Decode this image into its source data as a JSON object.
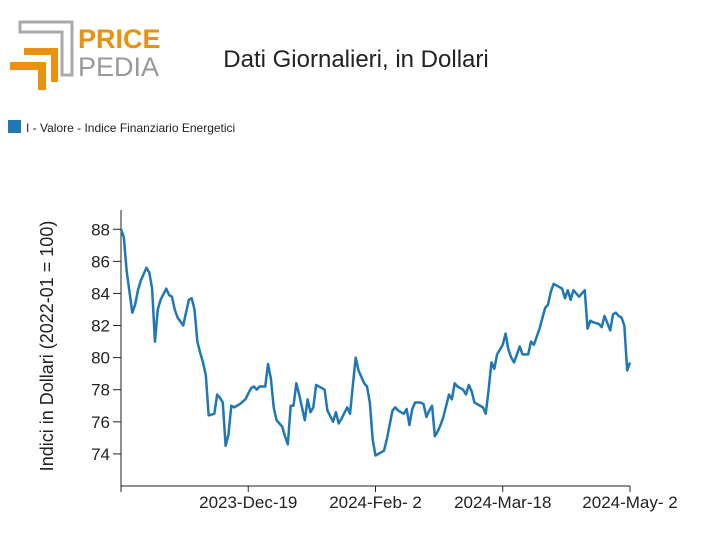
{
  "logo": {
    "top": "PRICE",
    "bottom": "PEDIA"
  },
  "chart_data": {
    "type": "line",
    "title": "Dati Giornalieri, in Dollari",
    "y_label": "Indici in Dollari (2022-01 = 100)",
    "legend_position": "top-left",
    "x": [
      "2023-11-04",
      "2023-11-05",
      "2023-11-06",
      "2023-11-08",
      "2023-11-09",
      "2023-11-10",
      "2023-11-11",
      "2023-11-13",
      "2023-11-14",
      "2023-11-15",
      "2023-11-16",
      "2023-11-17",
      "2023-11-18",
      "2023-11-20",
      "2023-11-21",
      "2023-11-22",
      "2023-11-23",
      "2023-11-24",
      "2023-11-26",
      "2023-11-28",
      "2023-11-29",
      "2023-11-30",
      "2023-12-01",
      "2023-12-02",
      "2023-12-03",
      "2023-12-04",
      "2023-12-05",
      "2023-12-07",
      "2023-12-08",
      "2023-12-09",
      "2023-12-10",
      "2023-12-11",
      "2023-12-12",
      "2023-12-13",
      "2023-12-14",
      "2023-12-16",
      "2023-12-18",
      "2023-12-20",
      "2023-12-21",
      "2023-12-22",
      "2023-12-23",
      "2023-12-25",
      "2023-12-26",
      "2023-12-27",
      "2023-12-28",
      "2023-12-29",
      "2023-12-31",
      "2024-01-01",
      "2024-01-02",
      "2024-01-03",
      "2024-01-04",
      "2024-01-05",
      "2024-01-06",
      "2024-01-08",
      "2024-01-09",
      "2024-01-10",
      "2024-01-11",
      "2024-01-12",
      "2024-01-13",
      "2024-01-15",
      "2024-01-16",
      "2024-01-18",
      "2024-01-19",
      "2024-01-20",
      "2024-01-21",
      "2024-01-23",
      "2024-01-24",
      "2024-01-25",
      "2024-01-26",
      "2024-01-27",
      "2024-01-29",
      "2024-01-30",
      "2024-01-31",
      "2024-02-01",
      "2024-02-02",
      "2024-02-04",
      "2024-02-05",
      "2024-02-06",
      "2024-02-08",
      "2024-02-09",
      "2024-02-10",
      "2024-02-12",
      "2024-02-13",
      "2024-02-14",
      "2024-02-15",
      "2024-02-16",
      "2024-02-18",
      "2024-02-19",
      "2024-02-20",
      "2024-02-21",
      "2024-02-22",
      "2024-02-23",
      "2024-02-24",
      "2024-02-25",
      "2024-02-26",
      "2024-02-28",
      "2024-02-29",
      "2024-03-01",
      "2024-03-02",
      "2024-03-04",
      "2024-03-05",
      "2024-03-06",
      "2024-03-07",
      "2024-03-08",
      "2024-03-10",
      "2024-03-11",
      "2024-03-12",
      "2024-03-13",
      "2024-03-14",
      "2024-03-15",
      "2024-03-16",
      "2024-03-18",
      "2024-03-19",
      "2024-03-20",
      "2024-03-21",
      "2024-03-22",
      "2024-03-23",
      "2024-03-24",
      "2024-03-25",
      "2024-03-27",
      "2024-03-28",
      "2024-03-29",
      "2024-03-30",
      "2024-03-31",
      "2024-04-02",
      "2024-04-03",
      "2024-04-04",
      "2024-04-05",
      "2024-04-06",
      "2024-04-08",
      "2024-04-09",
      "2024-04-10",
      "2024-04-11",
      "2024-04-12",
      "2024-04-13",
      "2024-04-14",
      "2024-04-16",
      "2024-04-17",
      "2024-04-18",
      "2024-04-19",
      "2024-04-21",
      "2024-04-22",
      "2024-04-23",
      "2024-04-25",
      "2024-04-26",
      "2024-04-27",
      "2024-04-28",
      "2024-04-29",
      "2024-04-30",
      "2024-05-01",
      "2024-05-02"
    ],
    "series": [
      {
        "name": "I - Valore - Indice Finanziario Energetici",
        "color": "#1f77b4",
        "values": [
          88.0,
          87.5,
          85.4,
          82.8,
          83.3,
          84.2,
          84.8,
          85.6,
          85.3,
          84.3,
          81.0,
          83.0,
          83.6,
          84.3,
          83.9,
          83.8,
          83.0,
          82.5,
          82.0,
          83.6,
          83.7,
          83.0,
          81.0,
          80.3,
          79.7,
          78.9,
          76.4,
          76.5,
          77.7,
          77.5,
          77.2,
          74.5,
          75.2,
          77.0,
          76.9,
          77.1,
          77.4,
          78.1,
          78.2,
          78.0,
          78.2,
          78.2,
          79.6,
          78.7,
          76.9,
          76.1,
          75.7,
          75.1,
          74.6,
          77.0,
          77.0,
          78.4,
          77.7,
          76.1,
          77.4,
          76.6,
          76.9,
          78.3,
          78.2,
          78.0,
          76.7,
          76.0,
          76.6,
          75.9,
          76.2,
          76.9,
          76.5,
          78.3,
          80.0,
          79.2,
          78.4,
          78.2,
          77.2,
          74.9,
          73.9,
          74.1,
          74.2,
          74.9,
          76.7,
          76.9,
          76.7,
          76.5,
          76.8,
          75.8,
          76.8,
          77.2,
          77.2,
          77.1,
          76.3,
          76.7,
          77.0,
          75.1,
          75.4,
          75.8,
          76.3,
          77.7,
          77.4,
          78.4,
          78.2,
          78.0,
          77.7,
          78.3,
          77.9,
          77.2,
          77.0,
          76.9,
          76.5,
          78.0,
          79.7,
          79.3,
          80.2,
          80.8,
          81.5,
          80.5,
          80.0,
          79.7,
          80.2,
          80.7,
          80.2,
          80.2,
          81.0,
          80.8,
          81.3,
          81.8,
          83.1,
          83.3,
          84.1,
          84.6,
          84.5,
          84.3,
          83.7,
          84.2,
          83.6,
          84.2,
          84.0,
          83.8,
          84.2,
          81.8,
          82.3,
          82.2,
          82.1,
          81.9,
          82.6,
          81.7,
          82.7,
          82.8,
          82.6,
          82.5,
          82.0,
          79.2,
          79.7
        ]
      }
    ],
    "xlim": [
      "2023-11-04",
      "2024-05-02"
    ],
    "xticks": [
      {
        "value": "2023-12-19",
        "label": "2023-Dec-19"
      },
      {
        "value": "2024-02-02",
        "label": "2024-Feb- 2"
      },
      {
        "value": "2024-03-18",
        "label": "2024-Mar-18"
      },
      {
        "value": "2024-05-02",
        "label": "2024-May- 2"
      }
    ],
    "ylim": [
      72,
      89.2
    ],
    "yticks": [
      74,
      76,
      78,
      80,
      82,
      84,
      86,
      88
    ],
    "grid": false
  }
}
